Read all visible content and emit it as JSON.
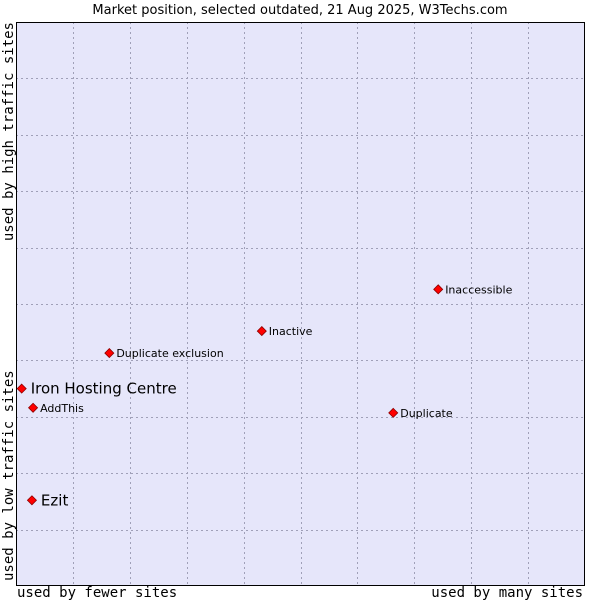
{
  "chart_data": {
    "type": "scatter",
    "title": "Market position, selected outdated, 21 Aug 2025, W3Techs.com",
    "xlabel_left": "used by fewer sites",
    "xlabel_right": "used by many sites",
    "ylabel_bottom": "used by low traffic sites",
    "ylabel_top": "used by high traffic sites",
    "xlim": [
      0,
      100
    ],
    "ylim": [
      0,
      100
    ],
    "grid": true,
    "colors": {
      "background": "#e6e6fa",
      "marker": "#ff0000",
      "marker_edge": "#8b0000",
      "border": "#000000"
    },
    "points": [
      {
        "label": "Inaccessible",
        "x": 74.2,
        "y": 52.6,
        "emphasis": false
      },
      {
        "label": "Inactive",
        "x": 43.2,
        "y": 45.2,
        "emphasis": false
      },
      {
        "label": "Duplicate exclusion",
        "x": 16.4,
        "y": 41.3,
        "emphasis": false
      },
      {
        "label": "Iron Hosting Centre",
        "x": 1.0,
        "y": 35.0,
        "emphasis": true
      },
      {
        "label": "AddThis",
        "x": 3.0,
        "y": 31.6,
        "emphasis": false
      },
      {
        "label": "Duplicate",
        "x": 66.3,
        "y": 30.7,
        "emphasis": false
      },
      {
        "label": "Ezit",
        "x": 2.8,
        "y": 15.2,
        "emphasis": true
      }
    ]
  }
}
